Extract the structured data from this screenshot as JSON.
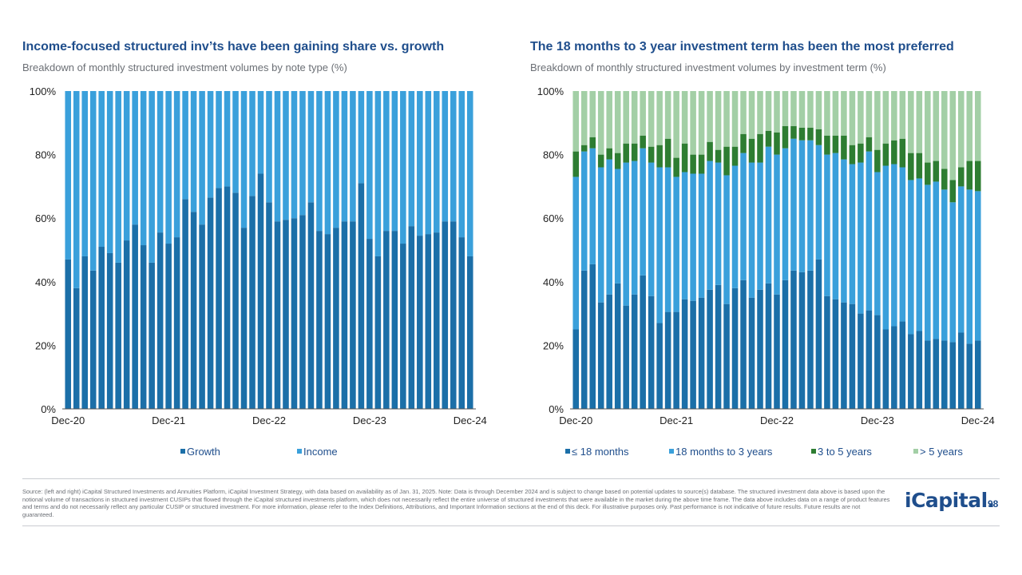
{
  "left": {
    "title": "Income-focused structured inv’ts have been gaining share vs. growth",
    "subtitle": "Breakdown of monthly structured investment volumes by note type (%)"
  },
  "right": {
    "title": "The 18 months to 3 year investment term has been the most preferred",
    "subtitle": "Breakdown of monthly structured investment volumes by investment term (%)"
  },
  "chart_data": [
    {
      "type": "bar",
      "stacked": true,
      "title": "Income-focused structured inv’ts have been gaining share vs. growth",
      "ylim": [
        0,
        100
      ],
      "yticks": [
        "0%",
        "20%",
        "40%",
        "60%",
        "80%",
        "100%"
      ],
      "xticks": [
        "Dec-20",
        "Dec-21",
        "Dec-22",
        "Dec-23",
        "Dec-24"
      ],
      "series": [
        {
          "name": "Growth",
          "color": "#1b6fa8",
          "values": [
            47,
            38,
            48,
            43.5,
            51,
            49,
            46,
            53,
            58,
            51.5,
            46,
            55.5,
            52,
            54,
            66,
            62,
            58,
            66.5,
            69.5,
            70,
            68,
            57,
            67,
            74,
            65,
            59,
            59.5,
            60,
            61,
            65,
            56,
            55,
            57,
            59,
            59,
            71,
            53.5,
            48,
            56,
            56,
            52,
            57.5,
            54.5,
            55,
            55.5,
            59,
            59,
            54,
            48
          ]
        },
        {
          "name": "Income",
          "color": "#3aa0db",
          "values": [
            53,
            62,
            52,
            56.5,
            49,
            51,
            54,
            47,
            42,
            48.5,
            54,
            44.5,
            48,
            46,
            34,
            38,
            42,
            33.5,
            30.5,
            30,
            32,
            43,
            33,
            26,
            35,
            41,
            40.5,
            40,
            39,
            35,
            44,
            45,
            43,
            41,
            41,
            29,
            46.5,
            52,
            44,
            44,
            48,
            42.5,
            45.5,
            45,
            44.5,
            41,
            41,
            46,
            52
          ]
        }
      ],
      "legend": [
        "Growth",
        "Income"
      ]
    },
    {
      "type": "bar",
      "stacked": true,
      "title": "The 18 months to 3 year investment term has been the most preferred",
      "ylim": [
        0,
        100
      ],
      "yticks": [
        "0%",
        "20%",
        "40%",
        "60%",
        "80%",
        "100%"
      ],
      "xticks": [
        "Dec-20",
        "Dec-21",
        "Dec-22",
        "Dec-23",
        "Dec-24"
      ],
      "series": [
        {
          "name": "≤ 18 months",
          "color": "#1b6fa8",
          "values": [
            25,
            43.5,
            45.5,
            33.5,
            36,
            39.5,
            32.5,
            36,
            42,
            35.5,
            27,
            30.5,
            30.5,
            34.5,
            34,
            35,
            37.5,
            39,
            33,
            38,
            40.5,
            35,
            37.5,
            39.5,
            36,
            40.5,
            43.5,
            43,
            43.5,
            47,
            35.5,
            34.5,
            33.5,
            33,
            30,
            31,
            29.5,
            25,
            26,
            27.5,
            23.5,
            24.5,
            21.5,
            22,
            21.5,
            21,
            24,
            20.5,
            21.5
          ]
        },
        {
          "name": "18 months to 3 years",
          "color": "#3aa0db",
          "values": [
            48,
            37.5,
            36.5,
            42.5,
            42.5,
            36,
            45,
            42,
            40,
            42,
            49,
            45.5,
            42.5,
            40,
            40,
            39,
            40.5,
            38.5,
            40.5,
            38.5,
            40,
            42.5,
            40,
            43,
            44,
            41.5,
            41.5,
            41.5,
            41,
            36,
            44.5,
            46,
            45,
            44,
            47.5,
            50,
            45,
            51.5,
            51,
            48.5,
            48.5,
            48,
            49,
            49.5,
            47.5,
            44,
            46,
            48.5,
            47
          ]
        },
        {
          "name": "3 to 5 years",
          "color": "#2e7d32",
          "values": [
            8,
            2,
            3.5,
            4,
            3.5,
            5,
            6,
            5.5,
            4,
            5,
            7,
            9,
            6,
            9,
            6,
            6,
            6,
            4,
            9,
            6,
            6,
            7.5,
            9,
            5,
            7,
            7,
            4,
            4,
            4,
            5,
            6,
            5.5,
            7.5,
            6,
            6,
            4.5,
            7,
            7,
            7.5,
            9,
            8.5,
            8,
            7,
            6.5,
            6.5,
            7,
            6,
            9,
            9.5
          ]
        },
        {
          "name": "> 5 years",
          "color": "#a3cfa6",
          "values": [
            19,
            17,
            14.5,
            20,
            18,
            19.5,
            16.5,
            16.5,
            14,
            17.5,
            17,
            15,
            21,
            16.5,
            20,
            20,
            16,
            18.5,
            17.5,
            17.5,
            13.5,
            15,
            13.5,
            12.5,
            13,
            11,
            11,
            11.5,
            11.5,
            12,
            14,
            14,
            14,
            17,
            16.5,
            14.5,
            18.5,
            16.5,
            15.5,
            15,
            19.5,
            19.5,
            22.5,
            22,
            24.5,
            28,
            24,
            22,
            22
          ]
        }
      ],
      "legend": [
        "≤ 18 months",
        "18 months to 3 years",
        "3 to 5 years",
        "> 5 years"
      ]
    }
  ],
  "footnote": "Source: (left and right) iCapital Structured Investments and Annuities Platform, iCapital Investment Strategy, with data based on availability as of Jan. 31, 2025. Note: Data is through December 2024 and is subject to change based on potential updates to source(s) database. The structured investment data above is based upon the notional volume of transactions in structured investment CUSIPs that flowed through the iCapital structured investments platform, which does not necessarily reflect the entire universe of structured investments that were available in the market during the above time frame. The data above includes data on a range of product features and terms and do not necessarily reflect any particular CUSIP or structured investment. For more information, please refer to the Index Definitions, Attributions, and Important Information sections at the end of this deck. For illustrative purposes only. Past performance is not indicative of future results. Future results are not guaranteed.",
  "logo": "iCapital.",
  "page_number": "98"
}
